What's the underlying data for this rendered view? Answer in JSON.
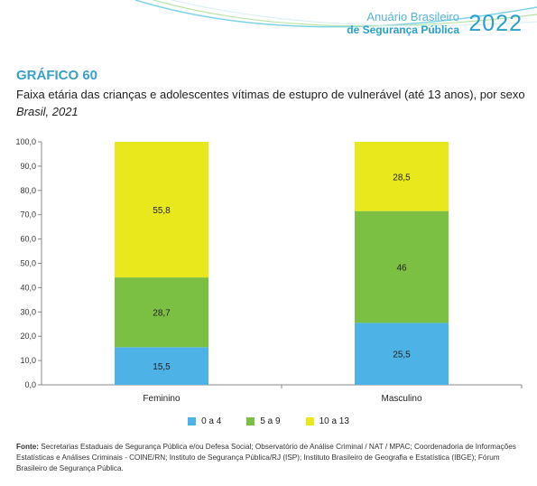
{
  "header": {
    "brand_line1": "Anuário Brasileiro",
    "brand_line2": "de Segurança Pública",
    "brand_year": "2022"
  },
  "chart_label": "GRÁFICO 60",
  "chart_data": {
    "type": "bar",
    "stacked": true,
    "title": "Faixa etária das crianças e adolescentes vítimas de estupro de vulnerável (até 13 anos), por sexo",
    "subtitle": "Brasil, 2021",
    "xlabel": "",
    "ylabel": "",
    "categories": [
      "Feminino",
      "Masculino"
    ],
    "ylim": [
      0,
      100
    ],
    "yticks": [
      "0,0",
      "10,0",
      "20,0",
      "30,0",
      "40,0",
      "50,0",
      "60,0",
      "70,0",
      "80,0",
      "90,0",
      "100,0"
    ],
    "series": [
      {
        "name": "0 a 4",
        "color": "#4db3e6",
        "values": [
          15.5,
          25.5
        ],
        "labels": [
          "15,5",
          "25,5"
        ]
      },
      {
        "name": "5 a 9",
        "color": "#7bc043",
        "values": [
          28.7,
          46
        ],
        "labels": [
          "28,7",
          "46"
        ]
      },
      {
        "name": "10 a 13",
        "color": "#e8e81c",
        "values": [
          55.8,
          28.5
        ],
        "labels": [
          "55,8",
          "28,5"
        ]
      }
    ],
    "legend_position": "bottom",
    "grid": false
  },
  "source": {
    "label": "Fonte:",
    "text": "Secretarias Estaduais de Segurança Pública e/ou Defesa Social; Observatório de Análise Criminal / NAT / MPAC; Coordenadoria de Informações Estatísticas e Análises Criminais - COINE/RN; Instituto de Segurança Pública/RJ (ISP); Instituto Brasileiro de Geografia e Estatística (IBGE); Fórum Brasileiro de Segurança Pública."
  }
}
